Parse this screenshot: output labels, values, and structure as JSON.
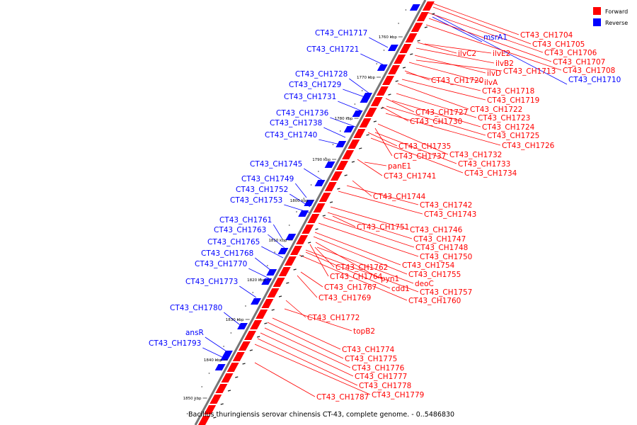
{
  "legend": {
    "forward": {
      "label": "Forward",
      "color": "#ff0000"
    },
    "reverse": {
      "label": "Reverse",
      "color": "#0000ff"
    }
  },
  "caption": "Bacillus thuringiensis serovar chinensis CT-43, complete genome. - 0..5486830",
  "ticks": [
    "1760 kbp",
    "1770 kbp",
    "1780 kbp",
    "1790 kbp",
    "1800 kbp",
    "1810 kbp",
    "1820 kbp",
    "1830 kbp",
    "1840 kbp",
    "1850 kbp"
  ],
  "reverse_genes": [
    "CT43_CH1717",
    "CT43_CH1721",
    "CT43_CH1728",
    "CT43_CH1729",
    "CT43_CH1731",
    "CT43_CH1736",
    "CT43_CH1738",
    "CT43_CH1740",
    "CT43_CH1745",
    "CT43_CH1749",
    "CT43_CH1752",
    "CT43_CH1753",
    "CT43_CH1761",
    "CT43_CH1763",
    "CT43_CH1765",
    "CT43_CH1768",
    "CT43_CH1770",
    "CT43_CH1773",
    "CT43_CH1780",
    "ansR",
    "CT43_CH1793",
    "msrA1",
    "CT43_CH1710"
  ],
  "forward_genes": [
    "CT43_CH1704",
    "CT43_CH1705",
    "CT43_CH1706",
    "CT43_CH1707",
    "CT43_CH1708",
    "ilvC2",
    "ilvE2",
    "ilvB2",
    "ilvD",
    "CT43_CH1713",
    "ilvA",
    "CT43_CH1720",
    "CT43_CH1718",
    "CT43_CH1719",
    "CT43_CH1722",
    "CT43_CH1727",
    "CT43_CH1723",
    "CT43_CH1730",
    "CT43_CH1724",
    "CT43_CH1725",
    "CT43_CH1726",
    "CT43_CH1735",
    "CT43_CH1737",
    "CT43_CH1732",
    "CT43_CH1733",
    "panE1",
    "CT43_CH1734",
    "CT43_CH1741",
    "CT43_CH1744",
    "CT43_CH1742",
    "CT43_CH1743",
    "CT43_CH1751",
    "CT43_CH1746",
    "CT43_CH1747",
    "CT43_CH1748",
    "CT43_CH1750",
    "CT43_CH1762",
    "CT43_CH1754",
    "CT43_CH1755",
    "CT43_CH1764",
    "pyn1",
    "deoC",
    "CT43_CH1767",
    "cdd1",
    "CT43_CH1757",
    "CT43_CH1769",
    "CT43_CH1760",
    "CT43_CH1772",
    "topB2",
    "CT43_CH1774",
    "CT43_CH1775",
    "CT43_CH1776",
    "CT43_CH1777",
    "CT43_CH1778",
    "CT43_CH1779",
    "CT43_CH1787"
  ]
}
